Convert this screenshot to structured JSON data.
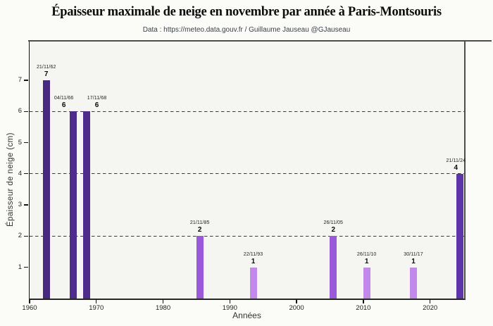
{
  "figure": {
    "title": "Épaisseur maximale de neige en novembre par année à Paris-Montsouris",
    "subtitle": "Data : https://meteo.data.gouv.fr / Guillaume Jauseau @GJauseau"
  },
  "chart_data": {
    "type": "bar",
    "title": "Épaisseur maximale de neige en novembre par année à Paris-Montsouris",
    "subtitle": "Data : https://meteo.data.gouv.fr / Guillaume Jauseau @GJauseau",
    "xlabel": "Années",
    "ylabel": "Épaisseur de neige (cm)",
    "xlim": [
      1960,
      2025.1
    ],
    "ylim": [
      0,
      8.24
    ],
    "xticks": [
      1960,
      1970,
      1980,
      1990,
      2000,
      2010,
      2020
    ],
    "yticks": [
      1,
      2,
      3,
      4,
      5,
      6,
      7
    ],
    "grid_dashed_y": [
      2,
      4,
      6
    ],
    "legend": "none",
    "bars": [
      {
        "year": 1962,
        "date_label": "21/11/62",
        "value": 7,
        "color": "#472a80",
        "label_dx": 0
      },
      {
        "year": 1966,
        "date_label": "04/11/66",
        "value": 6,
        "color": "#4d2c8c",
        "label_dx": -13
      },
      {
        "year": 1968,
        "date_label": "17/11/68",
        "value": 6,
        "color": "#4d2c8c",
        "label_dx": 15
      },
      {
        "year": 1985,
        "date_label": "21/11/85",
        "value": 2,
        "color": "#9a59d8",
        "label_dx": 0
      },
      {
        "year": 1993,
        "date_label": "22/11/93",
        "value": 1,
        "color": "#c089ea",
        "label_dx": 0
      },
      {
        "year": 2005,
        "date_label": "26/11/05",
        "value": 2,
        "color": "#9a59d8",
        "label_dx": 0
      },
      {
        "year": 2010,
        "date_label": "26/11/10",
        "value": 1,
        "color": "#c089ea",
        "label_dx": 0
      },
      {
        "year": 2017,
        "date_label": "30/11/17",
        "value": 1,
        "color": "#c089ea",
        "label_dx": 0
      },
      {
        "year": 2024,
        "date_label": "21/11/24",
        "value": 4,
        "color": "#5e35a8",
        "label_dx": -6
      }
    ],
    "colors": {
      "figure_bg": "#fbfbf8",
      "plot_bg": "#f5f5f1",
      "spine_gray": "#4d4d4d",
      "spine_black": "#141414",
      "grid": "#3a3a3a",
      "tick_text": "#222222",
      "subtitle_text": "#3b4149",
      "title_text": "#0d0d0d"
    }
  }
}
